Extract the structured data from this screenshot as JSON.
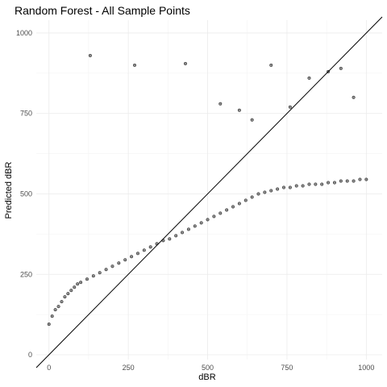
{
  "chart_data": {
    "type": "scatter",
    "title": "Random Forest - All Sample Points",
    "xlabel": "dBR",
    "ylabel": "Predicted dBR",
    "xlim": [
      -40,
      1050
    ],
    "ylim": [
      -15,
      1040
    ],
    "x_ticks": [
      0,
      250,
      500,
      750,
      1000
    ],
    "y_ticks": [
      0,
      250,
      500,
      750,
      1000
    ],
    "x_tick_labels": [
      "0",
      "250",
      "500",
      "750",
      "1000"
    ],
    "y_tick_labels": [
      "0",
      "250",
      "500",
      "750",
      "1000"
    ],
    "grid": true,
    "reference_line": {
      "slope": 1,
      "intercept": 0
    },
    "point_style": {
      "fill": "rgba(0,0,0,0.45)",
      "stroke": "rgba(0,0,0,0.85)",
      "radius": 1.8
    },
    "x": [
      0,
      10,
      20,
      30,
      40,
      50,
      60,
      70,
      80,
      90,
      100,
      120,
      140,
      160,
      180,
      200,
      220,
      240,
      260,
      280,
      300,
      320,
      340,
      360,
      380,
      400,
      420,
      440,
      460,
      480,
      500,
      520,
      540,
      560,
      580,
      600,
      620,
      640,
      660,
      680,
      700,
      720,
      740,
      760,
      780,
      800,
      820,
      840,
      860,
      880,
      900,
      920,
      940,
      960,
      980,
      1000,
      130,
      270,
      430,
      540,
      600,
      640,
      700,
      760,
      820,
      880,
      920,
      960
    ],
    "y": [
      95,
      120,
      140,
      150,
      165,
      180,
      190,
      200,
      210,
      220,
      225,
      235,
      245,
      255,
      265,
      275,
      285,
      295,
      305,
      315,
      325,
      335,
      345,
      355,
      360,
      370,
      380,
      390,
      400,
      410,
      420,
      430,
      440,
      450,
      460,
      470,
      480,
      490,
      500,
      505,
      510,
      515,
      520,
      520,
      525,
      525,
      530,
      530,
      530,
      535,
      535,
      540,
      540,
      540,
      545,
      545,
      930,
      900,
      905,
      780,
      760,
      730,
      900,
      770,
      860,
      880,
      890,
      800
    ]
  }
}
